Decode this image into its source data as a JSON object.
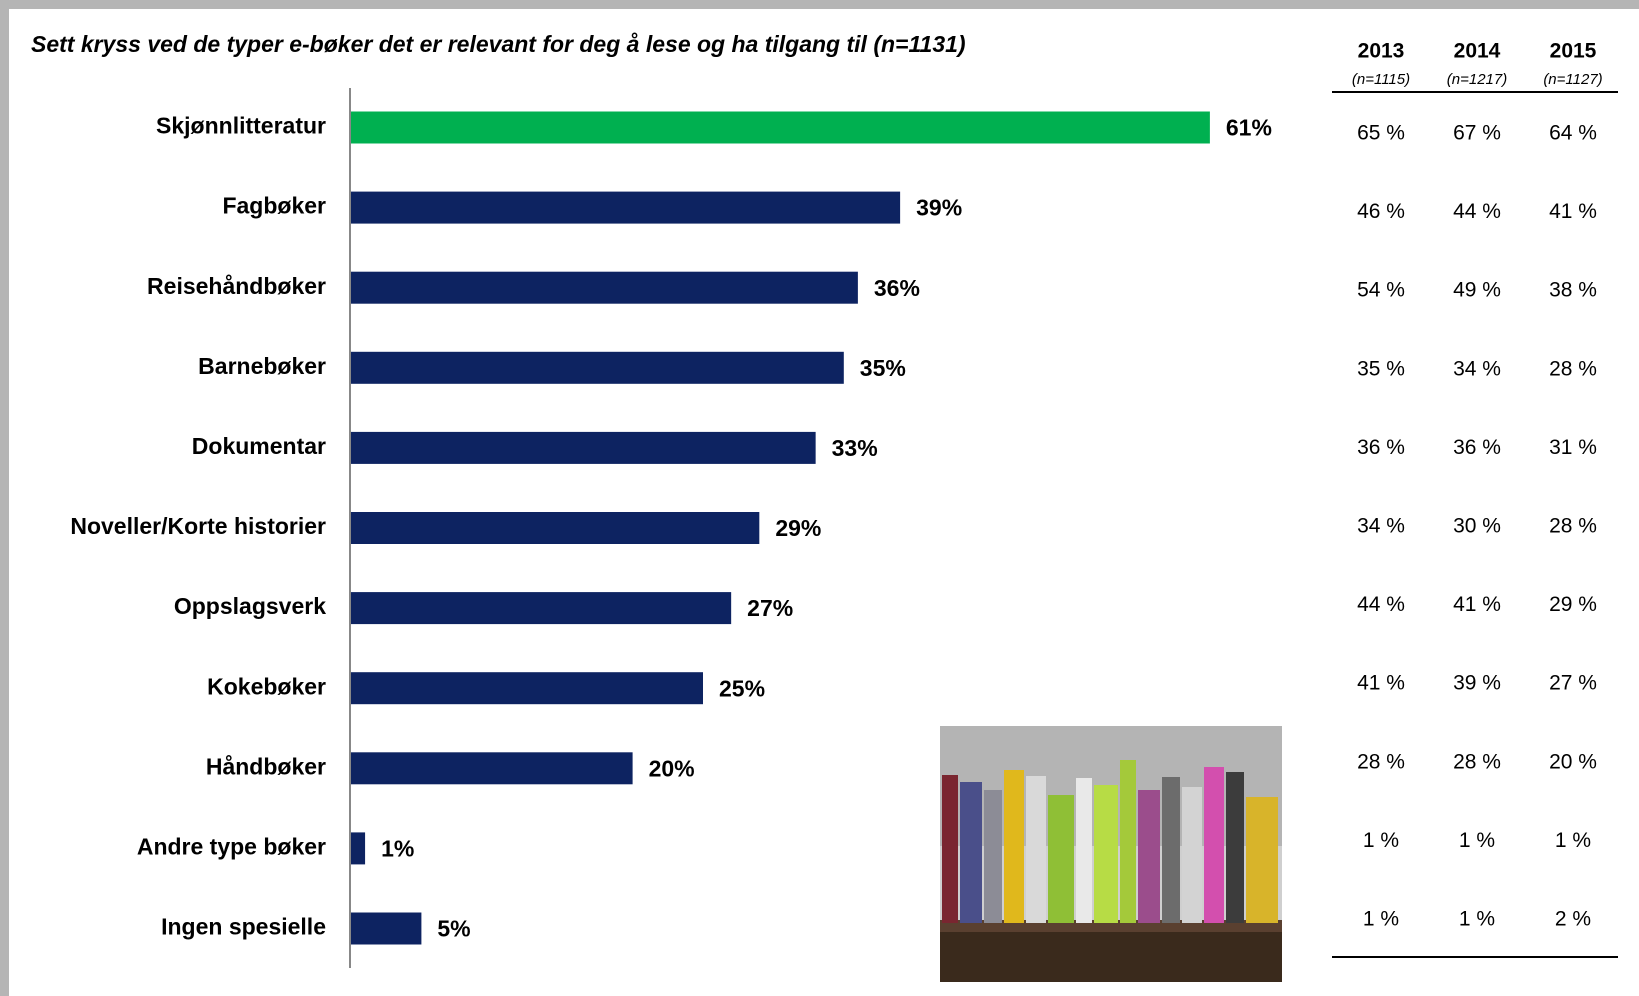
{
  "chart_data": {
    "type": "bar",
    "orientation": "horizontal",
    "title": "Sett kryss ved de typer e-bøker det er relevant for deg å lese og ha tilgang til (n=1131)",
    "categories": [
      "Skjønnlitteratur",
      "Fagbøker",
      "Reisehåndbøker",
      "Barnebøker",
      "Dokumentar",
      "Noveller/Korte historier",
      "Oppslagsverk",
      "Kokebøker",
      "Håndbøker",
      "Andre type bøker",
      "Ingen spesielle"
    ],
    "values": [
      61,
      39,
      36,
      35,
      33,
      29,
      27,
      25,
      20,
      1,
      5
    ],
    "value_labels": [
      "61%",
      "39%",
      "36%",
      "35%",
      "33%",
      "29%",
      "27%",
      "25%",
      "20%",
      "1%",
      "5%"
    ],
    "colors": [
      "#00b050",
      "#0d2361",
      "#0d2361",
      "#0d2361",
      "#0d2361",
      "#0d2361",
      "#0d2361",
      "#0d2361",
      "#0d2361",
      "#0d2361",
      "#0d2361"
    ],
    "xlim": [
      0,
      100
    ]
  },
  "table": {
    "columns": [
      {
        "year": "2013",
        "n": "(n=1115)"
      },
      {
        "year": "2014",
        "n": "(n=1217)"
      },
      {
        "year": "2015",
        "n": "(n=1127)"
      }
    ],
    "rows": [
      [
        "65 %",
        "67 %",
        "64 %"
      ],
      [
        "46 %",
        "44 %",
        "41 %"
      ],
      [
        "54 %",
        "49 %",
        "38 %"
      ],
      [
        "35 %",
        "34 %",
        "28 %"
      ],
      [
        "36 %",
        "36 %",
        "31 %"
      ],
      [
        "34 %",
        "30 %",
        "28 %"
      ],
      [
        "44 %",
        "41 %",
        "29 %"
      ],
      [
        "41 %",
        "39 %",
        "27 %"
      ],
      [
        "28 %",
        "28 %",
        "20 %"
      ],
      [
        "1 %",
        "1 %",
        "1 %"
      ],
      [
        "1 %",
        "1 %",
        "2 %"
      ]
    ]
  }
}
